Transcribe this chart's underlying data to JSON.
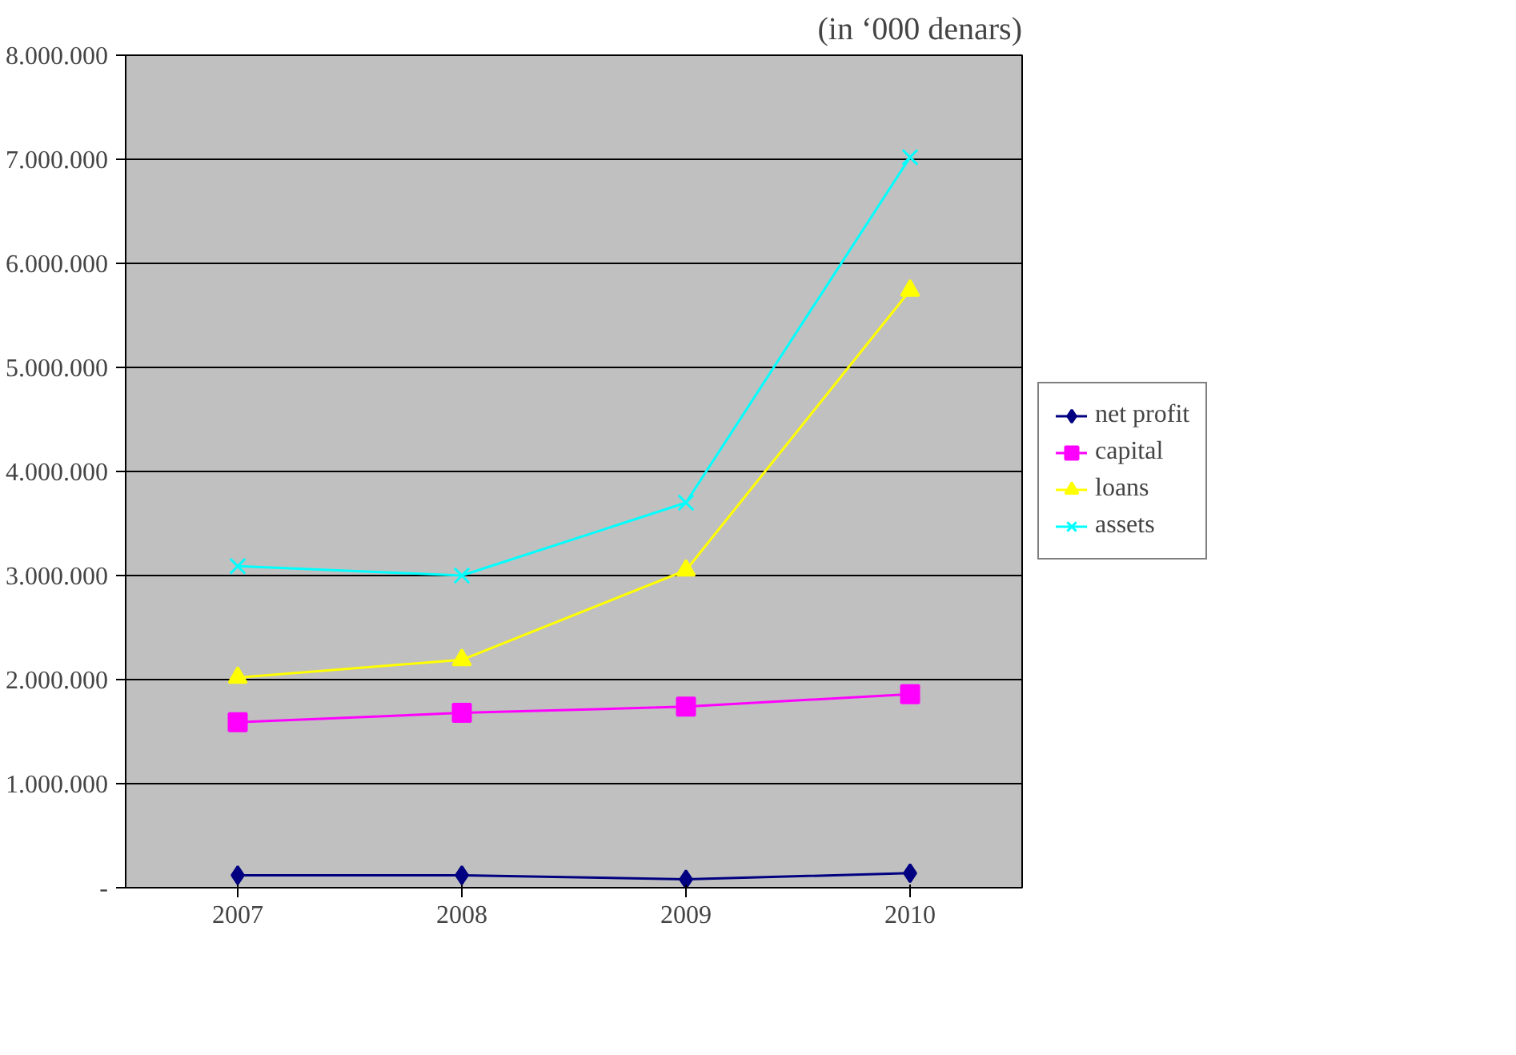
{
  "chart_data": {
    "type": "line",
    "annotations": [
      "(in ‘000 denars)"
    ],
    "categories": [
      "2007",
      "2008",
      "2009",
      "2010"
    ],
    "series": [
      {
        "name": "net profit",
        "color": "#000080",
        "marker": "diamond",
        "values": [
          120000,
          120000,
          80000,
          140000
        ]
      },
      {
        "name": "capital",
        "color": "#ff00ff",
        "marker": "square",
        "values": [
          1590000,
          1680000,
          1740000,
          1860000
        ]
      },
      {
        "name": "loans",
        "color": "#ffff00",
        "marker": "triangle",
        "values": [
          2020000,
          2190000,
          3050000,
          5740000
        ]
      },
      {
        "name": "assets",
        "color": "#00ffff",
        "marker": "cross",
        "values": [
          3090000,
          3000000,
          3700000,
          7020000
        ]
      }
    ],
    "ylim": [
      0,
      8000000
    ],
    "yticks": [
      {
        "value": 0,
        "label": "-"
      },
      {
        "value": 1000000,
        "label": "1.000.000"
      },
      {
        "value": 2000000,
        "label": "2.000.000"
      },
      {
        "value": 3000000,
        "label": "3.000.000"
      },
      {
        "value": 4000000,
        "label": "4.000.000"
      },
      {
        "value": 5000000,
        "label": "5.000.000"
      },
      {
        "value": 6000000,
        "label": "6.000.000"
      },
      {
        "value": 7000000,
        "label": "7.000.000"
      },
      {
        "value": 8000000,
        "label": "8.000.000"
      }
    ],
    "grid": "y",
    "legend": "right"
  }
}
